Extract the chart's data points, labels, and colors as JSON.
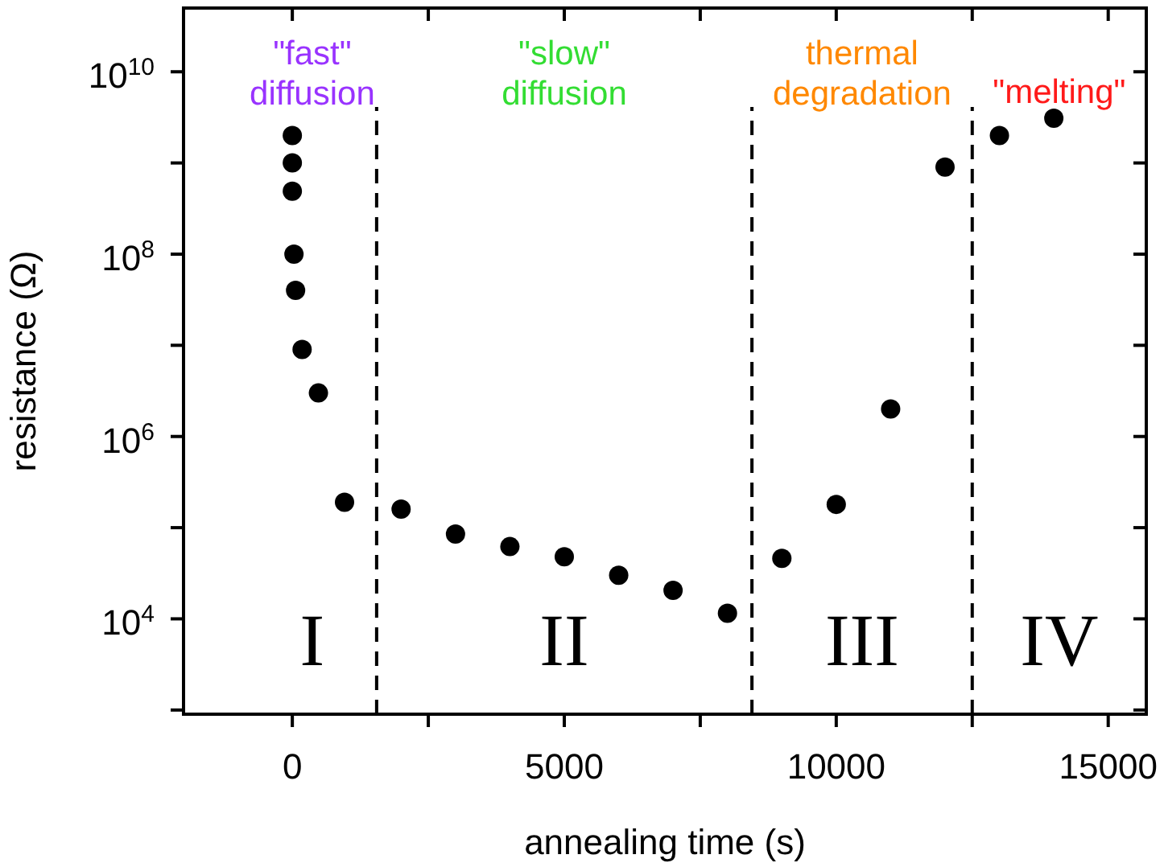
{
  "chart_data": {
    "type": "scatter",
    "xlabel": "annealing time (s)",
    "ylabel": "resistance (Ω)",
    "x": [
      0,
      0,
      0,
      30,
      60,
      180,
      480,
      960,
      2000,
      3000,
      4000,
      5000,
      6000,
      7000,
      8000,
      9000,
      10000,
      11000,
      12000,
      13000,
      14000
    ],
    "series": [
      {
        "color": "#000000",
        "values": [
          2000000000.0,
          1000000000.0,
          490000000.0,
          100000000.0,
          40000000.0,
          9000000.0,
          3000000.0,
          190000.0,
          160000.0,
          85000.0,
          62000.0,
          48000.0,
          30000.0,
          20500.0,
          11500.0,
          46000.0,
          180000.0,
          2000000.0,
          900000000.0,
          2000000000.0,
          3100000000.0
        ]
      }
    ],
    "marker": "circle",
    "log": "y",
    "xlim": [
      -2000,
      15700
    ],
    "xticks": [
      0,
      {
        "value": 2500,
        "label": null
      },
      5000,
      {
        "value": 7500,
        "label": null
      },
      10000,
      {
        "value": 12500,
        "label": null
      },
      15000
    ],
    "ylim": [
      900,
      50000000000
    ],
    "yticks": [
      {
        "value": 1000,
        "label": null
      },
      {
        "value": 10000,
        "label": "10$^{4}$"
      },
      {
        "value": 100000,
        "label": null
      },
      {
        "value": 1000000,
        "label": "10$^{6}$"
      },
      {
        "value": 10000000,
        "label": null
      },
      {
        "value": 100000000,
        "label": "10$^{8}$"
      },
      {
        "value": 1000000000,
        "label": null
      },
      {
        "value": 10000000000,
        "label": "10$^{10}$"
      }
    ],
    "ref_lines": [
      {
        "axis": "x",
        "value": 1550,
        "line_style": "dashed",
        "color": "#000000"
      },
      {
        "axis": "x",
        "value": 8450,
        "line_style": "dashed",
        "color": "#000000"
      },
      {
        "axis": "x",
        "value": 12500,
        "line_style": "dashed",
        "color": "#000000"
      }
    ],
    "annotations": [
      "\"fast\"\ndiffusion",
      "\"slow\"\ndiffusion",
      "thermal\ndegradation",
      "\"melting\"",
      "I",
      "II",
      "III",
      "IV"
    ]
  }
}
